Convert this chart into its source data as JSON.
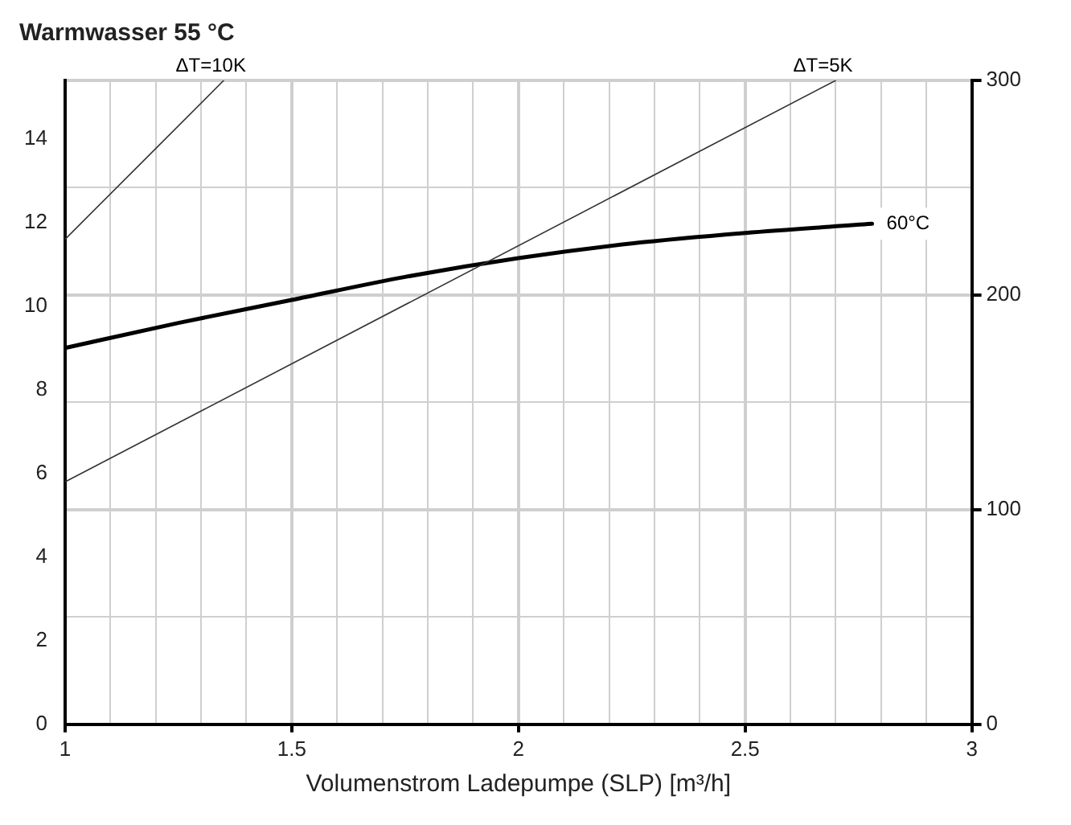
{
  "chart_data": {
    "type": "line",
    "title": "Warmwasser 55 °C",
    "xlabel": "Volumenstrom Ladepumpe (SLP) [m³/h]",
    "xlim": [
      1,
      3
    ],
    "xticks": [
      1,
      {
        "value": 1.1,
        "label": null
      },
      {
        "value": 1.2,
        "label": null
      },
      {
        "value": 1.3,
        "label": null
      },
      {
        "value": 1.4,
        "label": null
      },
      1.5,
      {
        "value": 1.6,
        "label": null
      },
      {
        "value": 1.7,
        "label": null
      },
      {
        "value": 1.8,
        "label": null
      },
      {
        "value": 1.9,
        "label": null
      },
      2,
      {
        "value": 2.1,
        "label": null
      },
      {
        "value": 2.2,
        "label": null
      },
      {
        "value": 2.3,
        "label": null
      },
      {
        "value": 2.4,
        "label": null
      },
      2.5,
      {
        "value": 2.6,
        "label": null
      },
      {
        "value": 2.7,
        "label": null
      },
      {
        "value": 2.8,
        "label": null
      },
      {
        "value": 2.9,
        "label": null
      },
      3
    ],
    "ylim": [
      0,
      15.4
    ],
    "yticks": [
      0,
      2,
      4,
      6,
      8,
      10,
      12,
      14
    ],
    "y2lim": [
      0,
      300
    ],
    "y2ticks": [
      0,
      {
        "value": 50,
        "label": null
      },
      100,
      {
        "value": 150,
        "label": null
      },
      200,
      {
        "value": 250,
        "label": null
      },
      300
    ],
    "grid": true,
    "legend": false,
    "marker": "none",
    "line_style": "solid",
    "series": [
      {
        "name": "ΔT=10K",
        "color": "#333333",
        "x": [
          1,
          1.35
        ],
        "values": [
          11.6,
          15.4
        ]
      },
      {
        "name": "ΔT=5K",
        "color": "#333333",
        "x": [
          1,
          2.7
        ],
        "values": [
          5.8,
          15.4
        ]
      },
      {
        "name": "60°C",
        "color": "#000000",
        "x": [
          1,
          1.25,
          1.5,
          1.75,
          2,
          2.25,
          2.5,
          2.78
        ],
        "values": [
          9.0,
          9.6,
          10.15,
          10.7,
          11.15,
          11.5,
          11.75,
          11.97
        ]
      }
    ]
  }
}
